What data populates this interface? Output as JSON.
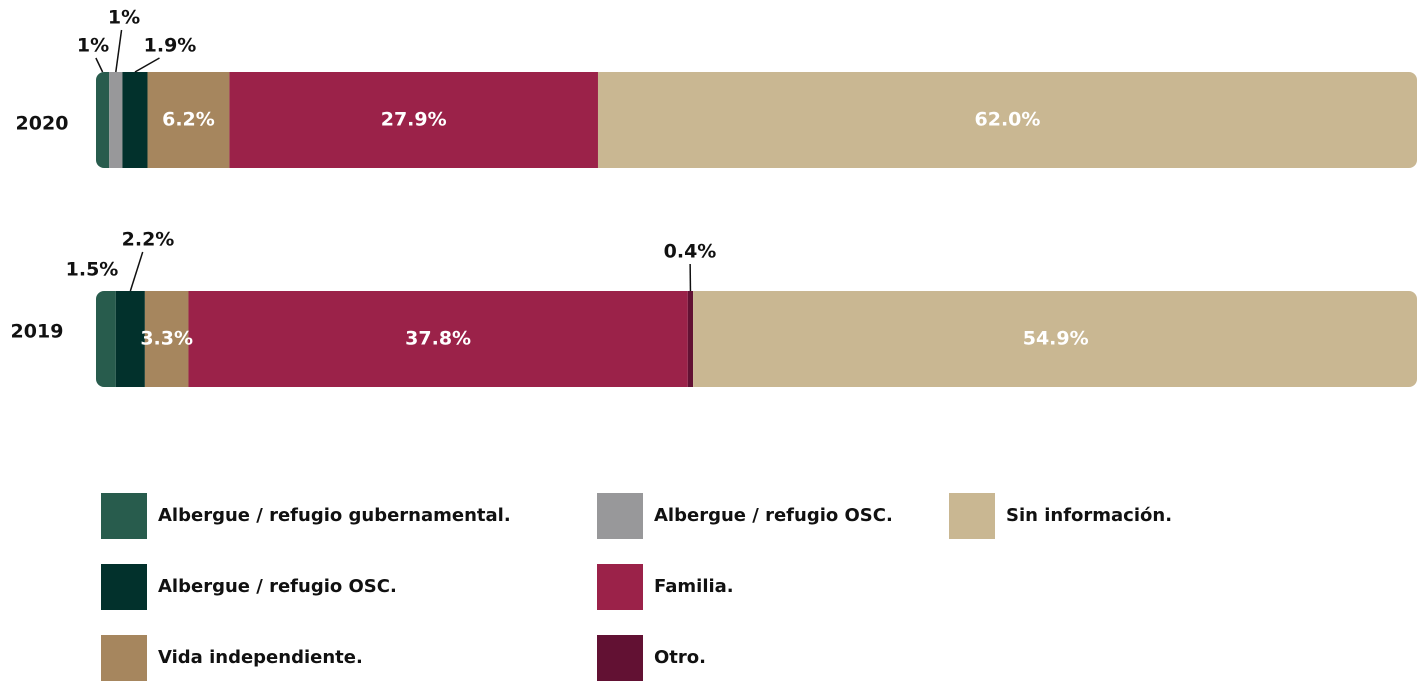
{
  "chart_data": {
    "type": "bar",
    "orientation": "horizontal",
    "stacked": true,
    "categories": [
      "2020",
      "2019"
    ],
    "xlim": [
      0,
      100
    ],
    "series": [
      {
        "name": "Albergue / refugio gubernamental.",
        "color": "#285c4d",
        "values": [
          1,
          1.5
        ],
        "value_labels": [
          "1%",
          "1.5%"
        ]
      },
      {
        "name": "Albergue / refugio OSC.",
        "color": "#98989a",
        "values": [
          1,
          null
        ],
        "value_labels": [
          "1%",
          null
        ]
      },
      {
        "name": "Albergue / refugio OSC.",
        "color": "#02312c",
        "values": [
          1.9,
          2.2
        ],
        "value_labels": [
          "1.9%",
          "2.2%"
        ]
      },
      {
        "name": "Vida independiente.",
        "color": "#a6865e",
        "values": [
          6.2,
          3.3
        ],
        "value_labels": [
          "6.2%",
          "3.3%"
        ]
      },
      {
        "name": "Familia.",
        "color": "#9b2249",
        "values": [
          27.9,
          37.8
        ],
        "value_labels": [
          "27.9%",
          "37.8%"
        ]
      },
      {
        "name": "Otro.",
        "color": "#621133",
        "values": [
          null,
          0.4
        ],
        "value_labels": [
          null,
          "0.4%"
        ]
      },
      {
        "name": "Sin información.",
        "color": "#c9b792",
        "values": [
          62.0,
          54.9
        ],
        "value_labels": [
          "62.0%",
          "54.9%"
        ]
      }
    ]
  }
}
